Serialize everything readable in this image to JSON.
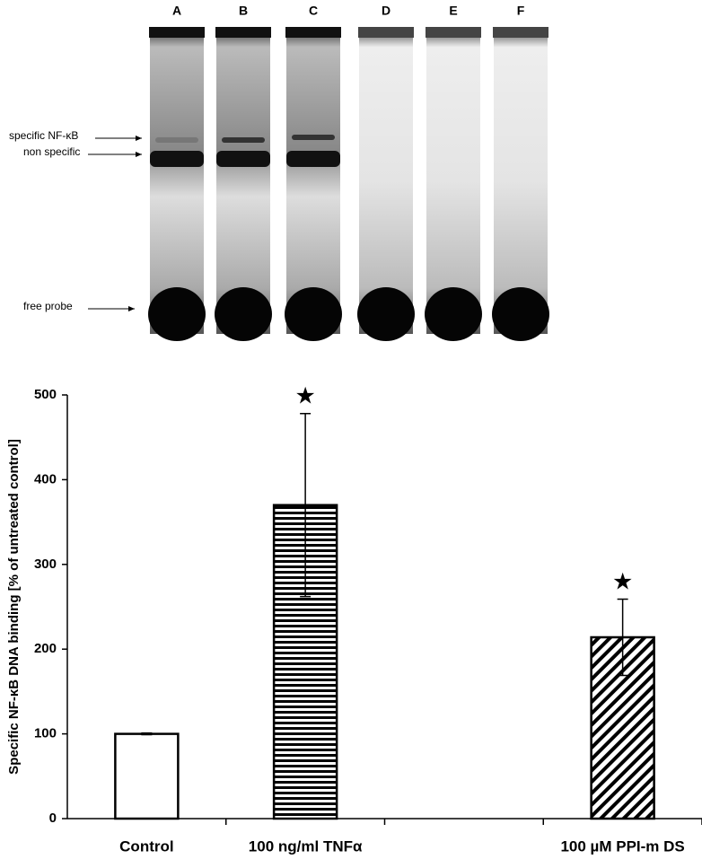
{
  "gel": {
    "lanes": [
      "A",
      "B",
      "C",
      "D",
      "E",
      "F"
    ],
    "band_labels": [
      "specific NF-κB",
      "non specific",
      "free probe"
    ]
  },
  "chart_data": {
    "type": "bar",
    "y_label": "Specific NF-κB DNA binding [% of untreated control]",
    "categories": [
      "Control",
      "100 ng/ml TNFα",
      null,
      "100 µM PPI-m DS"
    ],
    "values": [
      100,
      370,
      null,
      214
    ],
    "errors": [
      1,
      108,
      null,
      45
    ],
    "fills": [
      "white",
      "horizontal-hatch",
      null,
      "diagonal-hatch"
    ],
    "significant": [
      false,
      true,
      null,
      true
    ],
    "significance_marker": "★",
    "color": "#000000",
    "ylim": [
      0,
      500
    ],
    "yticks": [
      0,
      100,
      200,
      300,
      400,
      500
    ],
    "grid": false
  }
}
